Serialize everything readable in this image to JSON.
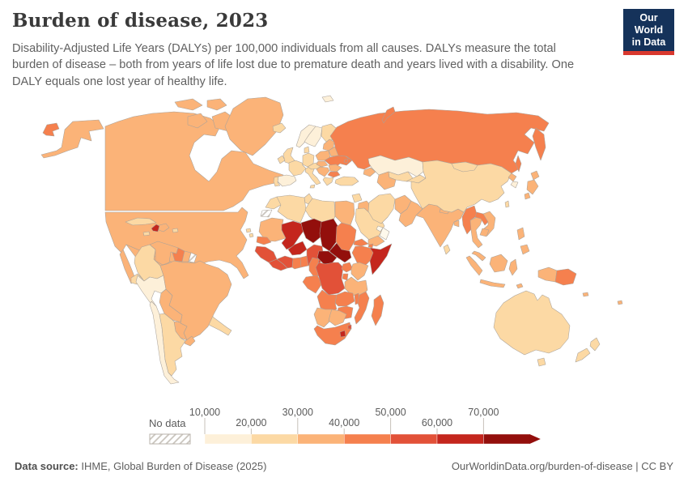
{
  "header": {
    "title": "Burden of disease, 2023",
    "subtitle": "Disability-Adjusted Life Years (DALYs) per 100,000 individuals from all causes. DALYs measure the total burden of disease – both from years of life lost due to premature death and years lived with a disability. One DALY equals one lost year of healthy life."
  },
  "logo": {
    "line1": "Our World",
    "line2": "in Data",
    "bg": "#15325a",
    "accent": "#d9382e"
  },
  "legend": {
    "no_data_label": "No data",
    "ticks": [
      "10,000",
      "20,000",
      "30,000",
      "40,000",
      "50,000",
      "60,000",
      "70,000"
    ]
  },
  "footer": {
    "source_label": "Data source:",
    "source_text": " IHME, Global Burden of Disease (2025)",
    "credit": "OurWorldinData.org/burden-of-disease | CC BY"
  },
  "chart_data": {
    "type": "choropleth_map",
    "title": "Burden of disease, 2023",
    "unit": "DALYs per 100,000 individuals",
    "year": 2023,
    "legend_position": "bottom",
    "bins": {
      "min": 10000,
      "step": 10000,
      "colors": [
        "#fdf0d9",
        "#fcd9a4",
        "#fbb378",
        "#f5804e",
        "#e25138",
        "#c4261d",
        "#930f0c"
      ],
      "below_min_color": "#fef9ec",
      "no_data_fill": "hatch"
    },
    "regions": [
      {
        "name": "United States",
        "value": 31000
      },
      {
        "name": "Canada",
        "value": 30500
      },
      {
        "name": "Greenland",
        "value": 33000
      },
      {
        "name": "Mexico",
        "value": 30000
      },
      {
        "name": "Central America",
        "value": 27000
      },
      {
        "name": "Cuba",
        "value": 26000
      },
      {
        "name": "Haiti",
        "value": 62000
      },
      {
        "name": "Dominican Republic",
        "value": 31000
      },
      {
        "name": "Jamaica",
        "value": 27000
      },
      {
        "name": "Puerto Rico",
        "value": 24000
      },
      {
        "name": "Colombia",
        "value": 25000
      },
      {
        "name": "Venezuela",
        "value": 31000
      },
      {
        "name": "Guyana",
        "value": 47000
      },
      {
        "name": "Suriname",
        "value": 33000
      },
      {
        "name": "French Guiana",
        "value": null
      },
      {
        "name": "Ecuador",
        "value": 26000
      },
      {
        "name": "Peru",
        "value": 18500
      },
      {
        "name": "Brazil",
        "value": 33000
      },
      {
        "name": "Bolivia",
        "value": 32000
      },
      {
        "name": "Paraguay",
        "value": 31000
      },
      {
        "name": "Chile",
        "value": 17500
      },
      {
        "name": "Argentina",
        "value": 24000
      },
      {
        "name": "Uruguay",
        "value": 31000
      },
      {
        "name": "Iceland",
        "value": 22000
      },
      {
        "name": "Norway",
        "value": 15500
      },
      {
        "name": "Sweden",
        "value": 15000
      },
      {
        "name": "Finland",
        "value": 21000
      },
      {
        "name": "United Kingdom",
        "value": 24000
      },
      {
        "name": "Ireland",
        "value": 22000
      },
      {
        "name": "Denmark",
        "value": 24500
      },
      {
        "name": "Germany",
        "value": 26000
      },
      {
        "name": "France",
        "value": 23000
      },
      {
        "name": "Spain",
        "value": 19000
      },
      {
        "name": "Portugal",
        "value": 24000
      },
      {
        "name": "Italy",
        "value": 21000
      },
      {
        "name": "Austria & Czechia",
        "value": 25000
      },
      {
        "name": "Poland",
        "value": 31000
      },
      {
        "name": "Baltic states",
        "value": 32000
      },
      {
        "name": "Belarus",
        "value": 36000
      },
      {
        "name": "Ukraine",
        "value": 44000
      },
      {
        "name": "Moldova",
        "value": 42000
      },
      {
        "name": "Romania",
        "value": 34000
      },
      {
        "name": "Hungary",
        "value": 33000
      },
      {
        "name": "Serbia & Balkans",
        "value": 34000
      },
      {
        "name": "Bulgaria",
        "value": 41000
      },
      {
        "name": "Greece",
        "value": 24000
      },
      {
        "name": "Russia",
        "value": 45000
      },
      {
        "name": "Turkey",
        "value": 22000
      },
      {
        "name": "Caucasus",
        "value": 30500
      },
      {
        "name": "Syria",
        "value": 28000
      },
      {
        "name": "Israel & Jordan",
        "value": 14000
      },
      {
        "name": "Iraq",
        "value": 31000
      },
      {
        "name": "Saudi Arabia",
        "value": 25000
      },
      {
        "name": "Yemen",
        "value": 35000
      },
      {
        "name": "Oman",
        "value": 9000
      },
      {
        "name": "United Arab Emirates",
        "value": 9500
      },
      {
        "name": "Iran",
        "value": 26000
      },
      {
        "name": "Afghanistan",
        "value": 38000
      },
      {
        "name": "Pakistan",
        "value": 33000
      },
      {
        "name": "Kazakhstan",
        "value": 19500
      },
      {
        "name": "Uzbekistan",
        "value": 27000
      },
      {
        "name": "Turkmenistan",
        "value": 32000
      },
      {
        "name": "Kyrgyzstan & Tajikistan",
        "value": 28000
      },
      {
        "name": "India",
        "value": 32000
      },
      {
        "name": "Nepal",
        "value": 33000
      },
      {
        "name": "Bangladesh",
        "value": 31000
      },
      {
        "name": "Sri Lanka",
        "value": 25000
      },
      {
        "name": "China",
        "value": 21000
      },
      {
        "name": "Mongolia",
        "value": 23000
      },
      {
        "name": "North Korea",
        "value": 32000
      },
      {
        "name": "South Korea",
        "value": 18000
      },
      {
        "name": "Japan",
        "value": 30500
      },
      {
        "name": "Taiwan",
        "value": 24000
      },
      {
        "name": "Myanmar",
        "value": 41000
      },
      {
        "name": "Thailand",
        "value": 31000
      },
      {
        "name": "Laos",
        "value": 41000
      },
      {
        "name": "Vietnam",
        "value": 31000
      },
      {
        "name": "Cambodia",
        "value": 34000
      },
      {
        "name": "Malaysia",
        "value": 31000
      },
      {
        "name": "Philippines",
        "value": 31000
      },
      {
        "name": "Indonesia",
        "value": 32000
      },
      {
        "name": "Timor-Leste",
        "value": 34000
      },
      {
        "name": "Papua New Guinea",
        "value": 42000
      },
      {
        "name": "Australia",
        "value": 21000
      },
      {
        "name": "New Zealand",
        "value": 21000
      },
      {
        "name": "Solomon Islands",
        "value": 34000
      },
      {
        "name": "Fiji",
        "value": 34000
      },
      {
        "name": "Morocco",
        "value": 26000
      },
      {
        "name": "Western Sahara",
        "value": null
      },
      {
        "name": "Algeria",
        "value": 24000
      },
      {
        "name": "Tunisia",
        "value": 25000
      },
      {
        "name": "Libya",
        "value": 27000
      },
      {
        "name": "Egypt",
        "value": 31000
      },
      {
        "name": "Mauritania",
        "value": 37000
      },
      {
        "name": "Mali",
        "value": 62000
      },
      {
        "name": "Senegal",
        "value": 42000
      },
      {
        "name": "Cape Verde",
        "value": 27000
      },
      {
        "name": "Guinea",
        "value": 57000
      },
      {
        "name": "Liberia",
        "value": 54000
      },
      {
        "name": "Côte d'Ivoire",
        "value": 53000
      },
      {
        "name": "Ghana",
        "value": 44000
      },
      {
        "name": "Benin & Togo",
        "value": 45000
      },
      {
        "name": "Burkina Faso",
        "value": 61000
      },
      {
        "name": "Niger",
        "value": 75000
      },
      {
        "name": "Chad",
        "value": 78000
      },
      {
        "name": "Nigeria",
        "value": 52000
      },
      {
        "name": "Sudan",
        "value": 42000
      },
      {
        "name": "Eritrea",
        "value": 44000
      },
      {
        "name": "Djibouti",
        "value": 43000
      },
      {
        "name": "Ethiopia",
        "value": 41000
      },
      {
        "name": "Somalia",
        "value": 66000
      },
      {
        "name": "South Sudan",
        "value": 76000
      },
      {
        "name": "Central African Republic",
        "value": 81000
      },
      {
        "name": "Cameroon",
        "value": 46000
      },
      {
        "name": "Congo",
        "value": 42000
      },
      {
        "name": "Democratic Republic of Congo",
        "value": 54000
      },
      {
        "name": "Uganda",
        "value": 43000
      },
      {
        "name": "Kenya",
        "value": 33000
      },
      {
        "name": "Rwanda & Burundi",
        "value": 43000
      },
      {
        "name": "Tanzania",
        "value": 36000
      },
      {
        "name": "Angola",
        "value": 41000
      },
      {
        "name": "Zambia",
        "value": 42000
      },
      {
        "name": "Malawi",
        "value": 42000
      },
      {
        "name": "Mozambique",
        "value": 46000
      },
      {
        "name": "Zimbabwe",
        "value": 44000
      },
      {
        "name": "Madagascar",
        "value": 44000
      },
      {
        "name": "Namibia",
        "value": 36000
      },
      {
        "name": "Botswana",
        "value": 34000
      },
      {
        "name": "South Africa",
        "value": 42000
      },
      {
        "name": "Lesotho",
        "value": 64000
      },
      {
        "name": "Eswatini",
        "value": 52000
      }
    ]
  }
}
